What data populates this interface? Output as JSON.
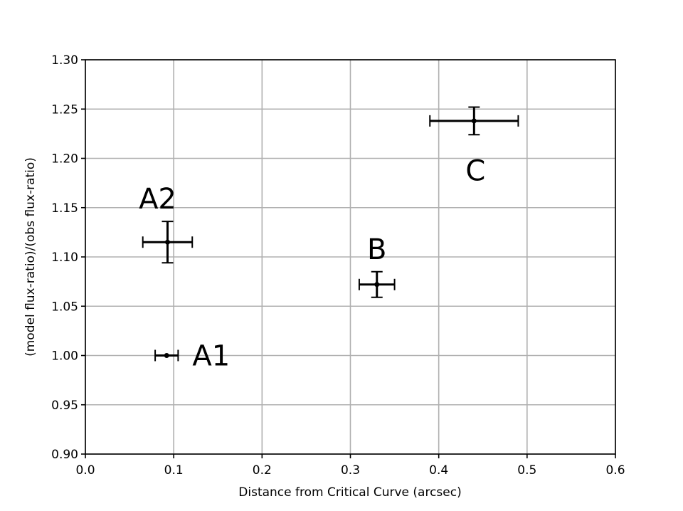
{
  "chart_data": {
    "type": "scatter",
    "title": "",
    "xlabel": "Distance from Critical Curve (arcsec)",
    "ylabel": "(model flux-ratio)/(obs flux-ratio)",
    "xlim": [
      0.0,
      0.6
    ],
    "ylim": [
      0.9,
      1.3
    ],
    "xticks": [
      "0.0",
      "0.1",
      "0.2",
      "0.3",
      "0.4",
      "0.5",
      "0.6"
    ],
    "yticks": [
      "0.90",
      "0.95",
      "1.00",
      "1.05",
      "1.10",
      "1.15",
      "1.20",
      "1.25",
      "1.30"
    ],
    "grid": true,
    "points": [
      {
        "label": "A1",
        "x": 0.092,
        "y": 1.0,
        "xerr": 0.013,
        "yerr": 0.0,
        "label_position": "right"
      },
      {
        "label": "A2",
        "x": 0.093,
        "y": 1.115,
        "xerr": 0.028,
        "yerr": 0.021,
        "label_position": "above"
      },
      {
        "label": "B",
        "x": 0.33,
        "y": 1.072,
        "xerr": 0.02,
        "yerr": 0.013,
        "label_position": "above"
      },
      {
        "label": "C",
        "x": 0.44,
        "y": 1.238,
        "xerr": 0.05,
        "yerr": 0.014,
        "label_position": "below"
      }
    ],
    "colors": {
      "marker": "#000000",
      "grid": "#b0b0b0"
    }
  }
}
